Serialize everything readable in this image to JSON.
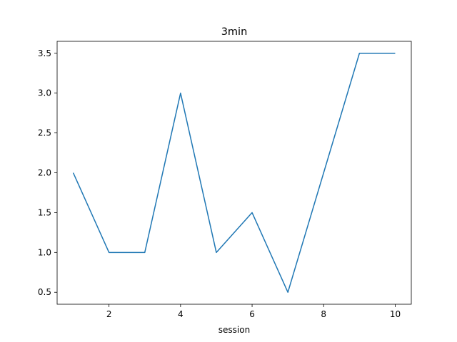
{
  "chart_data": {
    "type": "line",
    "title": "3min",
    "xlabel": "session",
    "ylabel": "",
    "x": [
      1,
      2,
      3,
      4,
      5,
      6,
      7,
      8,
      9,
      10
    ],
    "series": [
      {
        "values": [
          2.0,
          1.0,
          1.0,
          3.0,
          1.0,
          1.5,
          0.5,
          2.0,
          3.5,
          3.5
        ],
        "color": "#1f77b4"
      }
    ],
    "xlim": [
      0.55,
      10.45
    ],
    "ylim": [
      0.35,
      3.65
    ],
    "xticks": [
      2,
      4,
      6,
      8,
      10
    ],
    "xtick_labels": [
      "2",
      "4",
      "6",
      "8",
      "10"
    ],
    "yticks": [
      0.5,
      1.0,
      1.5,
      2.0,
      2.5,
      3.0,
      3.5
    ],
    "ytick_labels": [
      "0.5",
      "1.0",
      "1.5",
      "2.0",
      "2.5",
      "3.0",
      "3.5"
    ],
    "grid": false,
    "legend": "none"
  }
}
